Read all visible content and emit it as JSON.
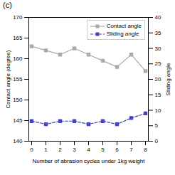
{
  "chart_data": {
    "type": "line",
    "title": "(c)",
    "x": [
      0,
      1,
      2,
      3,
      4,
      5,
      6,
      7,
      8
    ],
    "xlabel": "Number of abrasion cycles under 1kg weight",
    "ylabel": "Contact angle (degree)",
    "y2label": "Sliding angle",
    "xlim": [
      -0.2,
      8.2
    ],
    "xticks": [
      0,
      1,
      2,
      3,
      4,
      5,
      6,
      7,
      8
    ],
    "ylim": [
      140,
      170
    ],
    "yticks": [
      140,
      145,
      150,
      155,
      160,
      165,
      170
    ],
    "y2lim": [
      0,
      40
    ],
    "y2ticks": [
      0,
      5,
      10,
      15,
      20,
      25,
      30,
      35,
      40
    ],
    "legend": "upper right",
    "series": [
      {
        "name": "Contact angle",
        "color": "#aaaaaa",
        "marker": "square",
        "line_style": "solid",
        "values": [
          163.0,
          162.0,
          161.0,
          162.5,
          161.0,
          159.5,
          158.0,
          161.0,
          157.0
        ]
      },
      {
        "name": "Sliding angle",
        "color": "#4444bb",
        "marker": "square",
        "line_style": "dashed",
        "axis": "y2",
        "values": [
          6.5,
          5.5,
          6.5,
          6.5,
          5.5,
          6.5,
          5.5,
          7.5,
          9.0
        ]
      }
    ]
  }
}
